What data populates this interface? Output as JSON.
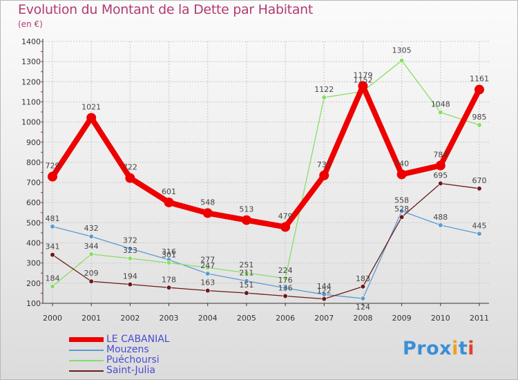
{
  "chart_data": {
    "type": "line",
    "title": "Evolution du Montant de la Dette par Habitant",
    "subtitle": "(en €)",
    "x": [
      "2000",
      "2001",
      "2002",
      "2003",
      "2004",
      "2005",
      "2006",
      "2007",
      "2008",
      "2009",
      "2010",
      "2011"
    ],
    "ylim": [
      100,
      1400
    ],
    "yticks": [
      100,
      200,
      300,
      400,
      500,
      600,
      700,
      800,
      900,
      1000,
      1100,
      1200,
      1300,
      1400
    ],
    "grid": true,
    "legend_position": "bottom-left",
    "series": [
      {
        "name": "LE CABANIAL",
        "color": "#ee0000",
        "values": [
          729,
          1021,
          722,
          601,
          548,
          513,
          479,
          735,
          1179,
          740,
          784,
          1161
        ]
      },
      {
        "name": "Mouzens",
        "color": "#5b9bd0",
        "values": [
          481,
          432,
          372,
          316,
          247,
          211,
          176,
          144,
          124,
          558,
          488,
          445
        ]
      },
      {
        "name": "Puéchoursi",
        "color": "#88dd66",
        "values": [
          184,
          344,
          323,
          301,
          277,
          251,
          224,
          1122,
          1152,
          1305,
          1048,
          985
        ]
      },
      {
        "name": "Saint-Julia",
        "color": "#6b1a1a",
        "values": [
          341,
          209,
          194,
          178,
          163,
          151,
          136,
          122,
          183,
          528,
          695,
          670
        ]
      }
    ]
  },
  "logo": {
    "text": "Prox",
    "mark": "i",
    "text2": "t",
    "mark2": "i"
  }
}
